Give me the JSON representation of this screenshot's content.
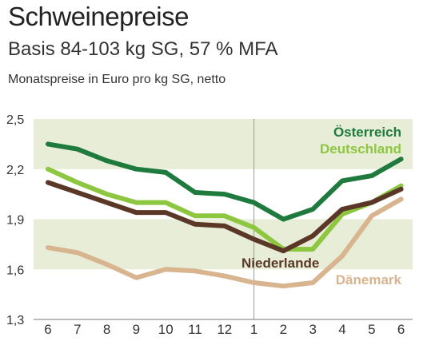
{
  "chart_data": {
    "type": "line",
    "title": "Schweinepreise",
    "subtitle": "Basis 84-103 kg SG, 57 % MFA",
    "ylabel": "Monatspreise in Euro pro kg SG, netto",
    "xlabel": "",
    "categories": [
      "6",
      "7",
      "8",
      "9",
      "10",
      "11",
      "12",
      "1",
      "2",
      "3",
      "4",
      "5",
      "6"
    ],
    "ylim": [
      1.3,
      2.5
    ],
    "yticks": [
      1.3,
      1.6,
      1.9,
      2.2,
      2.5
    ],
    "ytick_labels": [
      "1,3",
      "1,6",
      "1,9",
      "2,2",
      "2,5"
    ],
    "grid": "alternating horizontal bands",
    "band_color": "#e7edd6",
    "year_divider_at": "1",
    "series": [
      {
        "name": "Dänemark",
        "color": "#d8b48f",
        "values": [
          1.73,
          1.7,
          1.63,
          1.55,
          1.6,
          1.59,
          1.56,
          1.52,
          1.5,
          1.52,
          1.68,
          1.92,
          2.02
        ]
      },
      {
        "name": "Deutschland",
        "color": "#8dc63f",
        "values": [
          2.2,
          2.12,
          2.05,
          2.0,
          2.0,
          1.92,
          1.92,
          1.85,
          1.72,
          1.72,
          1.93,
          2.0,
          2.1
        ]
      },
      {
        "name": "Niederlande",
        "color": "#5a3726",
        "values": [
          2.12,
          2.06,
          2.0,
          1.94,
          1.94,
          1.87,
          1.86,
          1.78,
          1.71,
          1.8,
          1.96,
          2.0,
          2.08
        ]
      },
      {
        "name": "Österreich",
        "color": "#1f7a3d",
        "values": [
          2.35,
          2.32,
          2.25,
          2.2,
          2.18,
          2.06,
          2.05,
          2.0,
          1.9,
          1.96,
          2.13,
          2.16,
          2.26
        ]
      }
    ]
  }
}
